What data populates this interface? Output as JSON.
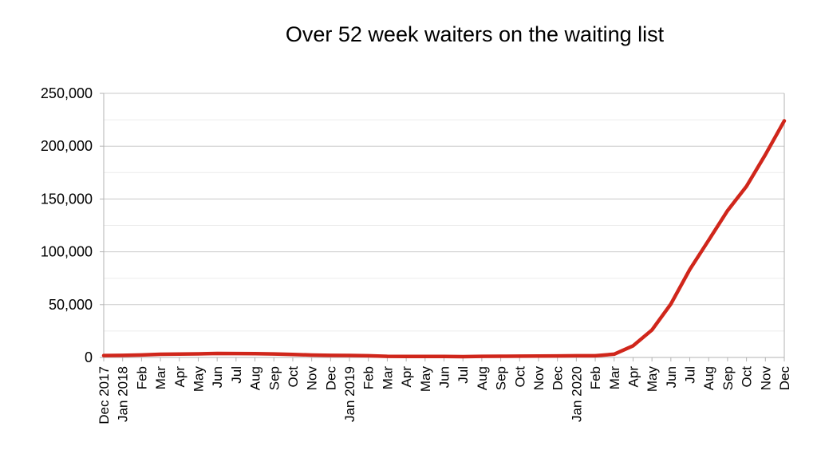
{
  "chart_data": {
    "type": "line",
    "title": "Over 52 week waiters on the waiting list",
    "xlabel": "",
    "ylabel": "",
    "ylim": [
      0,
      250000
    ],
    "y_ticks": [
      "0",
      "50,000",
      "100,000",
      "150,000",
      "200,000",
      "250,000"
    ],
    "grid": true,
    "legend": "none",
    "line_color": "#d0261b",
    "categories": [
      "Dec 2017",
      "Jan 2018",
      "Feb",
      "Mar",
      "Apr",
      "May",
      "Jun",
      "Jul",
      "Aug",
      "Sep",
      "Oct",
      "Nov",
      "Dec",
      "Jan 2019",
      "Feb",
      "Mar",
      "Apr",
      "May",
      "Jun",
      "Jul",
      "Aug",
      "Sep",
      "Oct",
      "Nov",
      "Dec",
      "Jan 2020",
      "Feb",
      "Mar",
      "Apr",
      "May",
      "Jun",
      "Jul",
      "Aug",
      "Sep",
      "Oct",
      "Nov",
      "Dec"
    ],
    "series": [
      {
        "values": [
          1800,
          2000,
          2400,
          3000,
          3200,
          3400,
          3800,
          3700,
          3600,
          3300,
          2800,
          2300,
          2000,
          1900,
          1600,
          1000,
          900,
          900,
          900,
          800,
          1000,
          1100,
          1200,
          1300,
          1400,
          1600,
          1600,
          3100,
          11000,
          26000,
          50600,
          83200,
          111000,
          139000,
          162000,
          192000,
          224000
        ]
      }
    ]
  }
}
